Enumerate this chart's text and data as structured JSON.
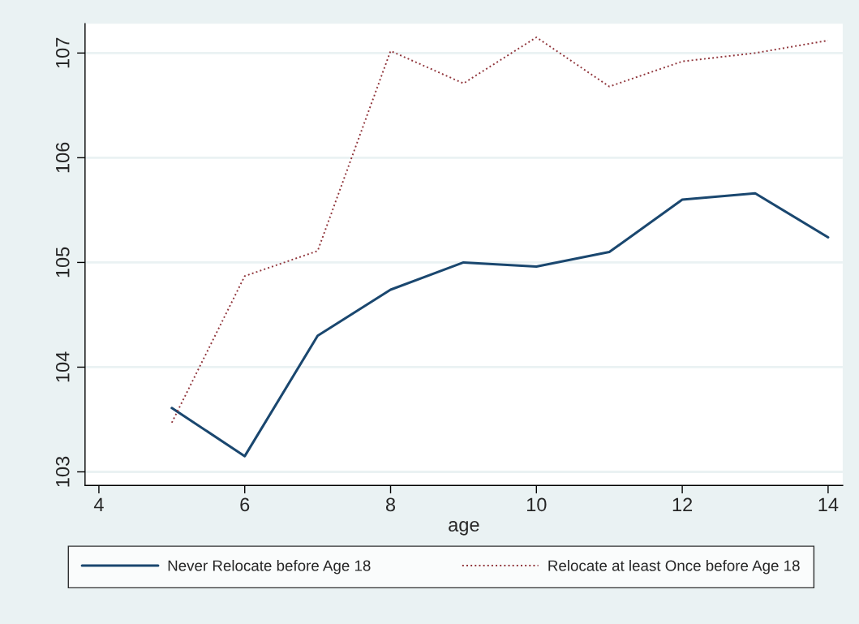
{
  "chart_data": {
    "type": "line",
    "xlabel": "age",
    "x": [
      5,
      6,
      7,
      8,
      9,
      10,
      11,
      12,
      13,
      14
    ],
    "series": [
      {
        "name": "Never Relocate before Age 18",
        "color": "#1a476f",
        "line_style": "solid",
        "values": [
          103.61,
          103.15,
          104.3,
          104.74,
          105.0,
          104.96,
          105.1,
          105.6,
          105.66,
          105.24
        ]
      },
      {
        "name": "Relocate at least Once before Age 18",
        "color": "#90353b",
        "line_style": "dotted",
        "values": [
          103.47,
          104.87,
          105.11,
          107.02,
          106.71,
          107.15,
          106.68,
          106.92,
          107.0,
          107.12
        ]
      }
    ],
    "xlim": [
      3.81,
      14.2
    ],
    "xticks": [
      4,
      6,
      8,
      10,
      12,
      14
    ],
    "ylim": [
      102.87,
      107.28
    ],
    "yticks": [
      103,
      104,
      105,
      106,
      107
    ],
    "grid": "y",
    "legend": "bottom",
    "marker": "none"
  }
}
